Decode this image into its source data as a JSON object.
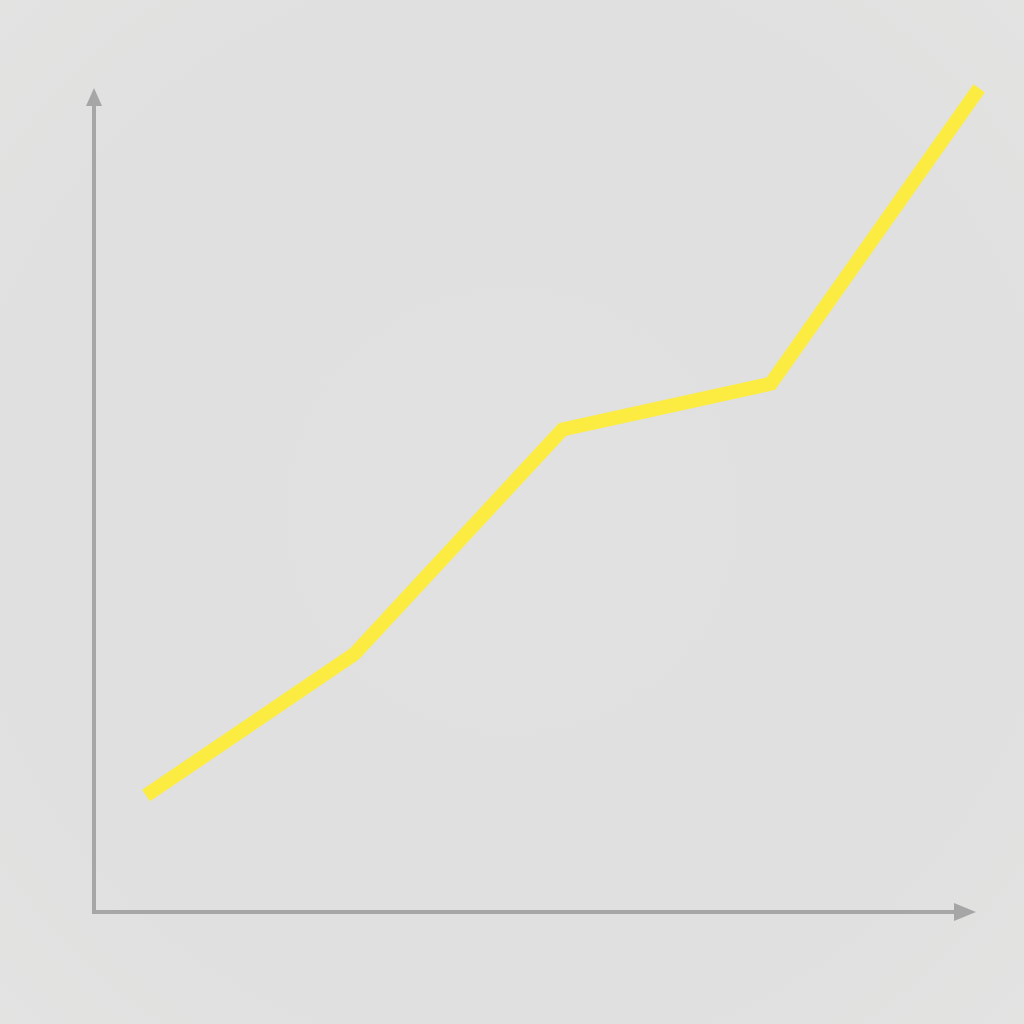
{
  "chart_data": {
    "type": "line",
    "title": "",
    "xlabel": "",
    "ylabel": "",
    "grid": false,
    "legend": "none",
    "x": [
      1,
      2,
      3,
      4,
      5
    ],
    "xlim": [
      0.75,
      5.1
    ],
    "ylim": [
      0,
      100
    ],
    "series": [
      {
        "values": [
          14,
          31,
          58,
          63.5,
          99
        ],
        "color": "#fcec41"
      }
    ],
    "axis_color": "#a6a6a6",
    "background": "#dfe0df"
  }
}
